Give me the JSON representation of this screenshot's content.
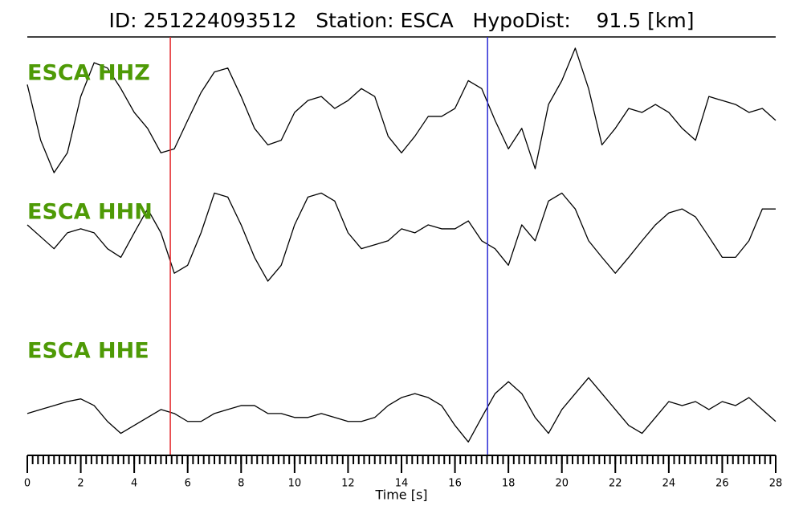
{
  "chart_data": {
    "type": "seismogram",
    "title": "ID: 251224093512   Station: ESCA   HypoDist:    91.5 [km]",
    "xlabel": "Time [s]",
    "xlim": [
      0,
      28
    ],
    "xticks": [
      0,
      2,
      4,
      6,
      8,
      10,
      12,
      14,
      16,
      18,
      20,
      22,
      24,
      26,
      28
    ],
    "xminor": 0.2,
    "ylim": [
      -1,
      1
    ],
    "x": [
      0,
      0.5,
      1,
      1.5,
      2,
      2.5,
      3,
      3.5,
      4,
      4.5,
      5,
      5.5,
      6,
      6.5,
      7,
      7.5,
      8,
      8.5,
      9,
      9.5,
      10,
      10.5,
      11,
      11.5,
      12,
      12.5,
      13,
      13.5,
      14,
      14.5,
      15,
      15.5,
      16,
      16.5,
      17,
      17.5,
      18,
      18.5,
      19,
      19.5,
      20,
      20.5,
      21,
      21.5,
      22,
      22.5,
      23,
      23.5,
      24,
      24.5,
      25,
      25.5,
      26,
      26.5,
      27,
      27.5,
      28
    ],
    "label_color": "#4e9a06",
    "series": [
      {
        "name": "ESCA HHZ",
        "color": "#000000",
        "values": [
          0.39,
          -0.45,
          -0.94,
          -0.64,
          0.21,
          0.72,
          0.64,
          0.33,
          -0.03,
          -0.27,
          -0.64,
          -0.58,
          -0.15,
          0.27,
          0.58,
          0.64,
          0.21,
          -0.27,
          -0.52,
          -0.45,
          -0.03,
          0.15,
          0.21,
          0.03,
          0.15,
          0.33,
          0.21,
          -0.39,
          -0.64,
          -0.39,
          -0.09,
          -0.09,
          0.03,
          0.45,
          0.33,
          -0.15,
          -0.58,
          -0.27,
          -0.88,
          0.09,
          0.45,
          0.94,
          0.33,
          -0.52,
          -0.27,
          0.03,
          -0.03,
          0.09,
          -0.03,
          -0.27,
          -0.45,
          0.21,
          0.15,
          0.09,
          -0.03,
          0.03,
          -0.15
        ]
      },
      {
        "name": "ESCA HHN",
        "color": "#000000",
        "values": [
          0.37,
          0.19,
          0.01,
          0.25,
          0.31,
          0.25,
          0.01,
          -0.12,
          0.25,
          0.61,
          0.25,
          -0.36,
          -0.24,
          0.25,
          0.85,
          0.79,
          0.37,
          -0.12,
          -0.48,
          -0.24,
          0.37,
          0.79,
          0.85,
          0.73,
          0.25,
          0.01,
          0.07,
          0.13,
          0.31,
          0.25,
          0.37,
          0.31,
          0.31,
          0.43,
          0.13,
          0.01,
          -0.24,
          0.37,
          0.13,
          0.73,
          0.85,
          0.61,
          0.13,
          -0.12,
          -0.36,
          -0.12,
          0.13,
          0.37,
          0.55,
          0.61,
          0.49,
          0.19,
          -0.12,
          -0.12,
          0.13,
          0.61,
          0.61
        ]
      },
      {
        "name": "ESCA HHE",
        "color": "#000000",
        "values": [
          -0.38,
          -0.32,
          -0.26,
          -0.2,
          -0.16,
          -0.26,
          -0.5,
          -0.68,
          -0.56,
          -0.44,
          -0.32,
          -0.38,
          -0.5,
          -0.5,
          -0.38,
          -0.32,
          -0.26,
          -0.26,
          -0.38,
          -0.38,
          -0.44,
          -0.44,
          -0.38,
          -0.44,
          -0.5,
          -0.5,
          -0.44,
          -0.26,
          -0.14,
          -0.08,
          -0.14,
          -0.26,
          -0.56,
          -0.81,
          -0.44,
          -0.08,
          0.1,
          -0.08,
          -0.44,
          -0.68,
          -0.32,
          -0.08,
          0.16,
          -0.08,
          -0.32,
          -0.56,
          -0.68,
          -0.44,
          -0.2,
          -0.26,
          -0.2,
          -0.32,
          -0.2,
          -0.26,
          -0.14,
          -0.32,
          -0.5
        ]
      }
    ],
    "markers": [
      {
        "x": 5.35,
        "color": "#e3262a"
      },
      {
        "x": 17.22,
        "color": "#2a2ad6"
      }
    ]
  }
}
